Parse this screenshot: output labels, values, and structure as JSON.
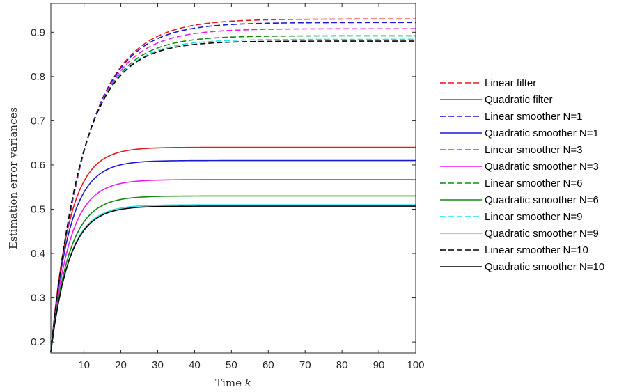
{
  "chart_data": {
    "type": "line",
    "title": "",
    "xlabel": "Time",
    "xlabel_var": "k",
    "ylabel": "Estimation error variances",
    "xlim": [
      1,
      100
    ],
    "ylim": [
      0.175,
      0.965
    ],
    "xticks": [
      10,
      20,
      30,
      40,
      50,
      60,
      70,
      80,
      90,
      100
    ],
    "yticks": [
      0.2,
      0.3,
      0.4,
      0.5,
      0.6,
      0.7,
      0.8,
      0.9
    ],
    "grid": false,
    "legend_position": "right",
    "start_value": 0.178,
    "series": [
      {
        "name": "Linear filter",
        "color": "#e8191c",
        "dash": true,
        "final": 0.93,
        "tau": 9.8
      },
      {
        "name": "Quadratic filter",
        "color": "#e8191c",
        "dash": false,
        "final": 0.64,
        "tau": 5.0
      },
      {
        "name": "Linear smoother N=1",
        "color": "#1a1ad6",
        "dash": true,
        "final": 0.922,
        "tau": 9.6
      },
      {
        "name": "Quadratic smoother N=1",
        "color": "#1a1ad6",
        "dash": false,
        "final": 0.61,
        "tau": 5.0
      },
      {
        "name": "Linear smoother N=3",
        "color": "#ee1cee",
        "dash": true,
        "final": 0.908,
        "tau": 9.3
      },
      {
        "name": "Quadratic smoother N=3",
        "color": "#ee1cee",
        "dash": false,
        "final": 0.567,
        "tau": 5.0
      },
      {
        "name": "Linear smoother N=6",
        "color": "#138a13",
        "dash": true,
        "final": 0.892,
        "tau": 8.9
      },
      {
        "name": "Quadratic smoother N=6",
        "color": "#138a13",
        "dash": false,
        "final": 0.53,
        "tau": 5.0
      },
      {
        "name": "Linear smoother N=9",
        "color": "#1ee0f0",
        "dash": true,
        "final": 0.884,
        "tau": 8.7
      },
      {
        "name": "Quadratic smoother N=9",
        "color": "#1ee0f0",
        "dash": false,
        "final": 0.51,
        "tau": 5.0
      },
      {
        "name": "Linear smoother N=10",
        "color": "#000000",
        "dash": true,
        "final": 0.88,
        "tau": 8.6
      },
      {
        "name": "Quadratic smoother N=10",
        "color": "#000000",
        "dash": false,
        "final": 0.507,
        "tau": 5.0
      }
    ]
  }
}
